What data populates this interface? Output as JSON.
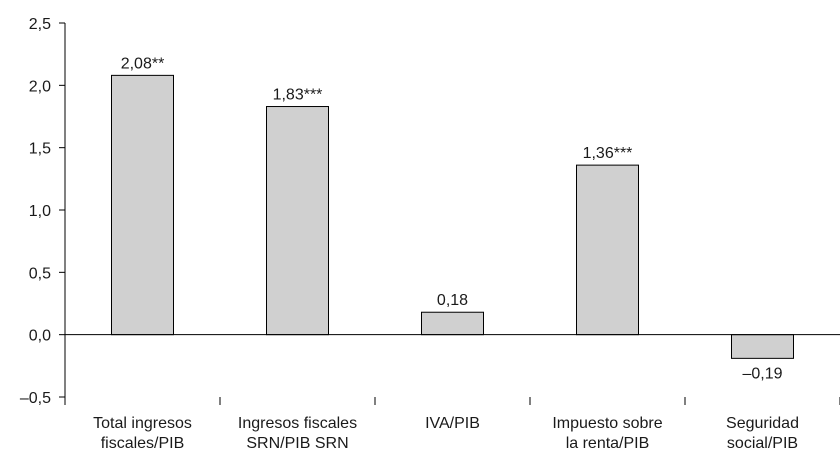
{
  "chart_data": {
    "type": "bar",
    "categories": [
      [
        "Total ingresos",
        "fiscales/PIB"
      ],
      [
        "Ingresos fiscales",
        "SRN/PIB SRN"
      ],
      [
        "IVA/PIB"
      ],
      [
        "Impuesto sobre",
        "la renta/PIB"
      ],
      [
        "Seguridad",
        "social/PIB"
      ]
    ],
    "values": [
      2.08,
      1.83,
      0.18,
      1.36,
      -0.19
    ],
    "data_labels": [
      "2,08**",
      "1,83***",
      "0,18",
      "1,36***",
      "–0,19"
    ],
    "y_ticks": [
      2.5,
      2.0,
      1.5,
      1.0,
      0.5,
      0.0,
      -0.5
    ],
    "y_tick_labels": [
      "2,5",
      "2,0",
      "1,5",
      "1,0",
      "0,5",
      "0,0",
      "–0,5"
    ],
    "ylim": [
      -0.5,
      2.5
    ],
    "grid": false,
    "legend": "none",
    "bar_color": "#d0d0d0",
    "title": "",
    "xlabel": "",
    "ylabel": ""
  }
}
